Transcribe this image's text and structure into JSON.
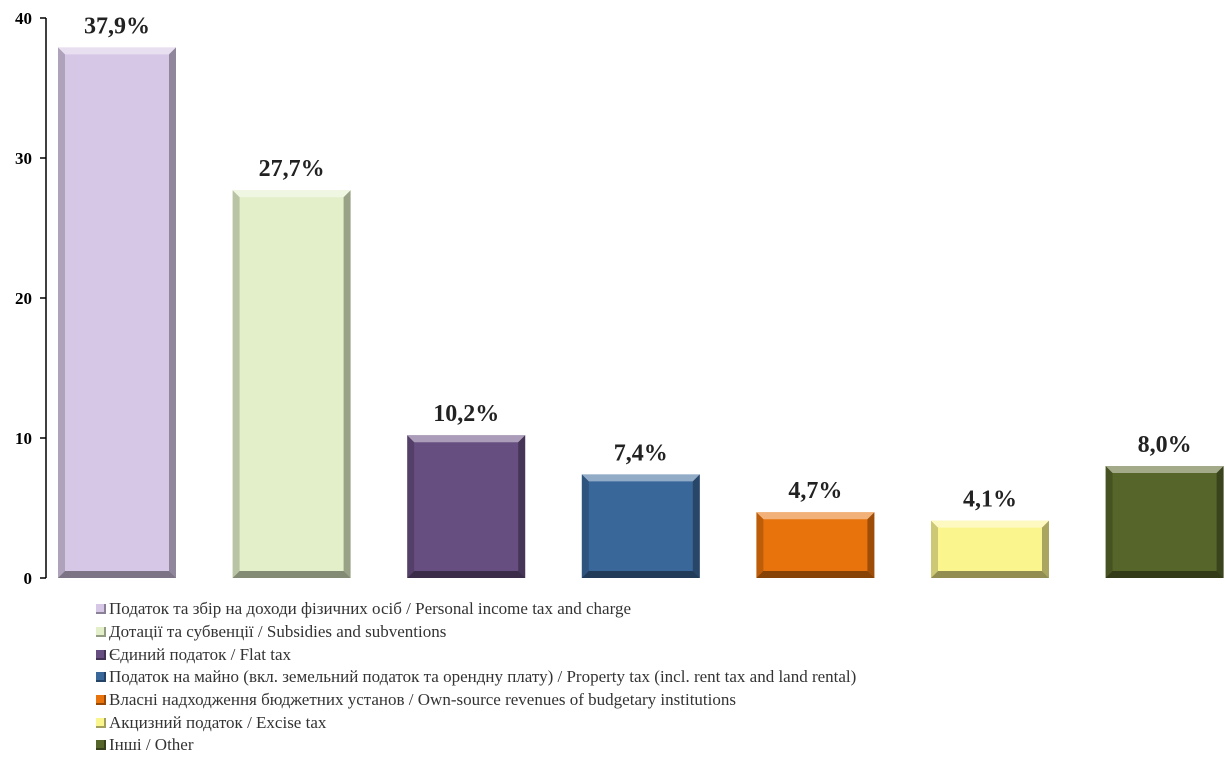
{
  "chart_data": {
    "type": "bar",
    "categories": [
      "Податок та збір на доходи фізичних осіб / Personal income tax and charge",
      "Дотації та субвенції / Subsidies and subventions",
      "Єдиний податок / Flat tax",
      "Податок на майно (вкл. земельний податок та орендну плату) / Property tax (incl. rent tax and land rental)",
      "Власні надходження бюджетних установ / Own-source revenues of budgetary institutions",
      "Акцизний податок / Excise tax",
      "Інші / Other"
    ],
    "values": [
      37.9,
      27.7,
      10.2,
      7.4,
      4.7,
      4.1,
      8.0
    ],
    "data_labels": [
      "37,9%",
      "27,7%",
      "10,2%",
      "7,4%",
      "4,7%",
      "4,1%",
      "8,0%"
    ],
    "colors": [
      "#d6c7e6",
      "#e2efc8",
      "#674e80",
      "#3a679a",
      "#e8720c",
      "#fbf58e",
      "#56652a"
    ],
    "yticks": [
      "0",
      "10",
      "20",
      "30",
      "40"
    ],
    "ylim": [
      0,
      40
    ],
    "grid": false,
    "legend_position": "bottom",
    "title": "",
    "xlabel": "",
    "ylabel": ""
  }
}
